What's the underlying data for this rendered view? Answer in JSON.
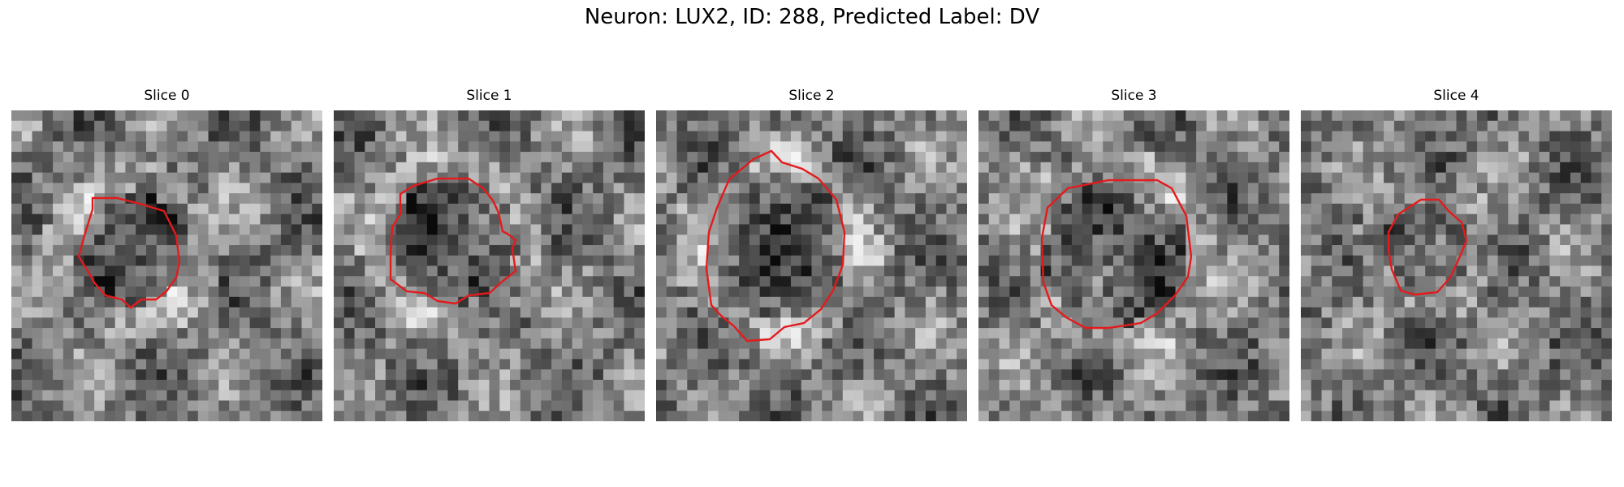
{
  "figure": {
    "title": "Neuron: LUX2, ID: 288, Predicted Label: DV"
  },
  "panels": [
    {
      "title": "Slice 0",
      "seed": 11,
      "outline_color": "#e41a1c"
    },
    {
      "title": "Slice 1",
      "seed": 23,
      "outline_color": "#e41a1c"
    },
    {
      "title": "Slice 2",
      "seed": 37,
      "outline_color": "#e41a1c"
    },
    {
      "title": "Slice 3",
      "seed": 41,
      "outline_color": "#e41a1c"
    },
    {
      "title": "Slice 4",
      "seed": 59,
      "outline_color": "#e41a1c"
    }
  ]
}
